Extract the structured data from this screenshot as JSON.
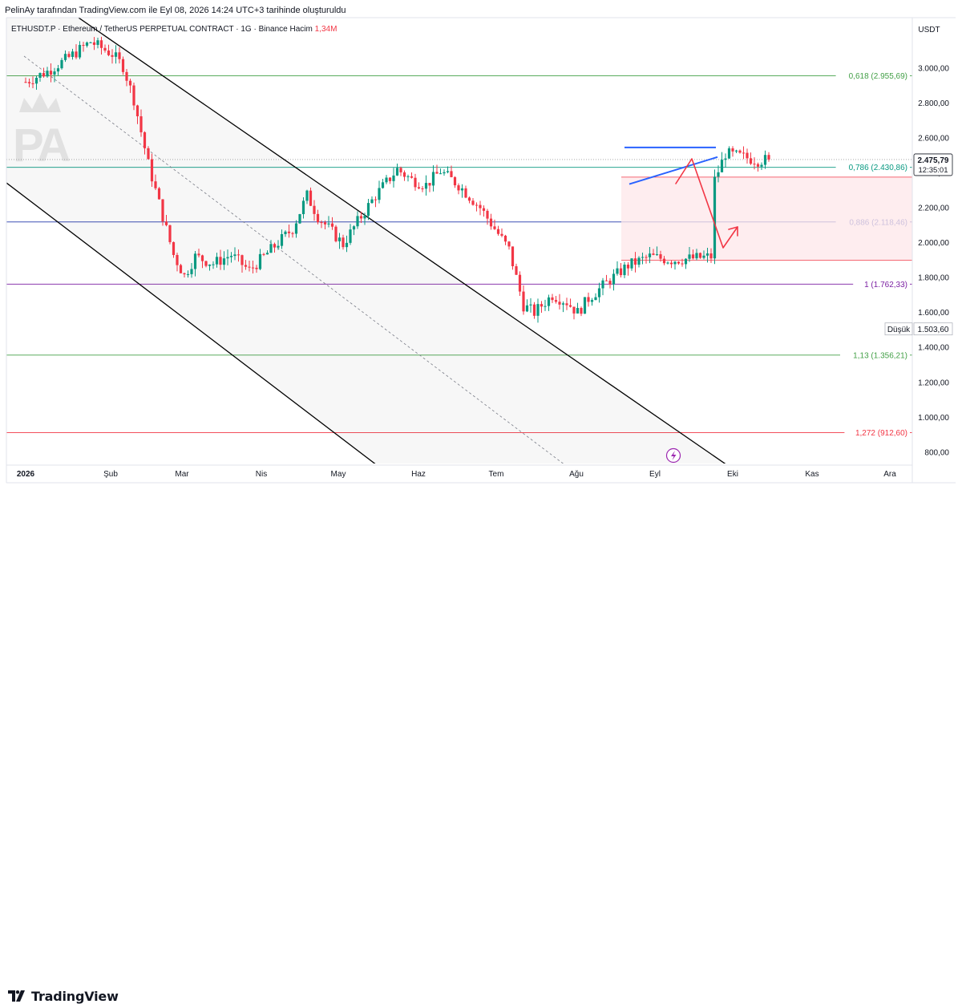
{
  "header": {
    "author_line": "PelinAy tarafından TradingView.com ile Eyl 08, 2026 14:24 UTC+3 tarihinde oluşturuldu",
    "symbol_prefix": "ETHUSDT.P · Ethereum / TetherUS PERPETUAL CONTRACT · 1G · Binance  Hacim",
    "volume": "1,34M"
  },
  "currency": "USDT",
  "watermark": "PA",
  "brand": "TradingView",
  "colors": {
    "bull": "#089981",
    "bear": "#f23645",
    "channel": "#000000",
    "triangle": "#2962ff",
    "arrow": "#f23645",
    "zone_fill": "#fde7ea",
    "zone_line": "#f23645"
  },
  "chart_data": {
    "type": "candlestick",
    "ylim": [
      700,
      3200
    ],
    "x_ticks": [
      "2026",
      "Şub",
      "Mar",
      "Nis",
      "May",
      "Haz",
      "Tem",
      "Ağu",
      "Eyl",
      "Eki",
      "Kas",
      "Ara"
    ],
    "y_ticks": [
      "3.000,00",
      "2.800,00",
      "2.600,00",
      "2.400,00",
      "2.200,00",
      "2.000,00",
      "1.800,00",
      "1.600,00",
      "1.400,00",
      "1.200,00",
      "1.000,00",
      "800,00"
    ],
    "last_price": "2.475,79",
    "countdown": "12:35:01",
    "low_label": "Düşük",
    "low_value": "1.503,60",
    "fib_levels": [
      {
        "label": "0,618 (2.955,69)",
        "value": 2955.69,
        "color": "#43a047"
      },
      {
        "label": "0,786 (2.430,86)",
        "value": 2430.86,
        "color": "#089981"
      },
      {
        "label": "0,886 (2.118,46)",
        "value": 2118.46,
        "color": "#3f51b5"
      },
      {
        "label": "1 (1.762,33)",
        "value": 1762.33,
        "color": "#7b1fa2"
      },
      {
        "label": "1,13 (1.356,21)",
        "value": 1356.21,
        "color": "#43a047"
      },
      {
        "label": "1,272 (912,60)",
        "value": 912.6,
        "color": "#f23645"
      }
    ],
    "zone": {
      "top": 2375,
      "bottom": 1900
    },
    "price_path": [
      [
        0,
        2920
      ],
      [
        6,
        2980
      ],
      [
        12,
        3060
      ],
      [
        18,
        3150
      ],
      [
        24,
        3080
      ],
      [
        27,
        3010
      ],
      [
        30,
        2820
      ],
      [
        34,
        2450
      ],
      [
        38,
        2150
      ],
      [
        41,
        1930
      ],
      [
        44,
        1810
      ],
      [
        47,
        1920
      ],
      [
        52,
        1880
      ],
      [
        57,
        1930
      ],
      [
        62,
        1840
      ],
      [
        68,
        1960
      ],
      [
        74,
        2080
      ],
      [
        78,
        2270
      ],
      [
        81,
        2150
      ],
      [
        85,
        2060
      ],
      [
        88,
        1990
      ],
      [
        92,
        2120
      ],
      [
        97,
        2270
      ],
      [
        103,
        2420
      ],
      [
        107,
        2360
      ],
      [
        111,
        2330
      ],
      [
        115,
        2410
      ],
      [
        120,
        2330
      ],
      [
        126,
        2200
      ],
      [
        130,
        2080
      ],
      [
        134,
        1960
      ],
      [
        138,
        1640
      ],
      [
        141,
        1600
      ],
      [
        146,
        1700
      ],
      [
        150,
        1660
      ],
      [
        153,
        1600
      ],
      [
        156,
        1680
      ],
      [
        161,
        1770
      ],
      [
        167,
        1870
      ],
      [
        173,
        1920
      ],
      [
        179,
        1900
      ],
      [
        185,
        1910
      ],
      [
        190,
        1920
      ],
      [
        191,
        2360
      ],
      [
        194,
        2510
      ],
      [
        199,
        2490
      ],
      [
        203,
        2470
      ],
      [
        206,
        2476
      ]
    ],
    "last_x": 206
  }
}
